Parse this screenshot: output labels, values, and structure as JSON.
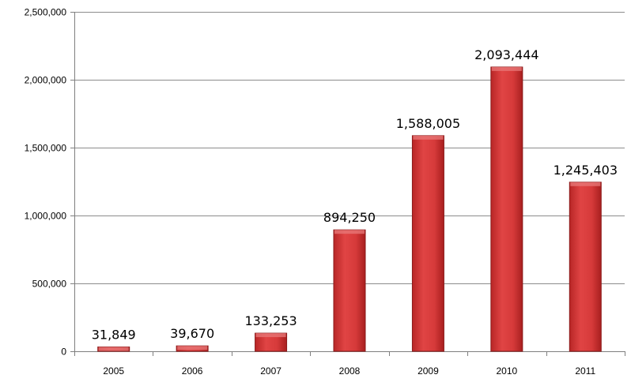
{
  "chart_data": {
    "type": "bar",
    "categories": [
      "2005",
      "2006",
      "2007",
      "2008",
      "2009",
      "2010",
      "2011"
    ],
    "values": [
      31849,
      39670,
      133253,
      894250,
      1588005,
      2093444,
      1245403
    ],
    "value_labels": [
      "31,849",
      "39,670",
      "133,253",
      "894,250",
      "1,588,005",
      "2,093,444",
      "1,245,403"
    ],
    "ylim": [
      0,
      2500000
    ],
    "y_ticks": [
      0,
      500000,
      1000000,
      1500000,
      2000000,
      2500000
    ],
    "y_tick_labels": [
      "0",
      "500,000",
      "1,000,000",
      "1,500,000",
      "2,000,000",
      "2,500,000"
    ],
    "grid": true,
    "legend": "none",
    "bar_color": "#d63a3a",
    "bar_top_color": "#e87a7a",
    "bar_edge_color": "#8b1a1a"
  }
}
